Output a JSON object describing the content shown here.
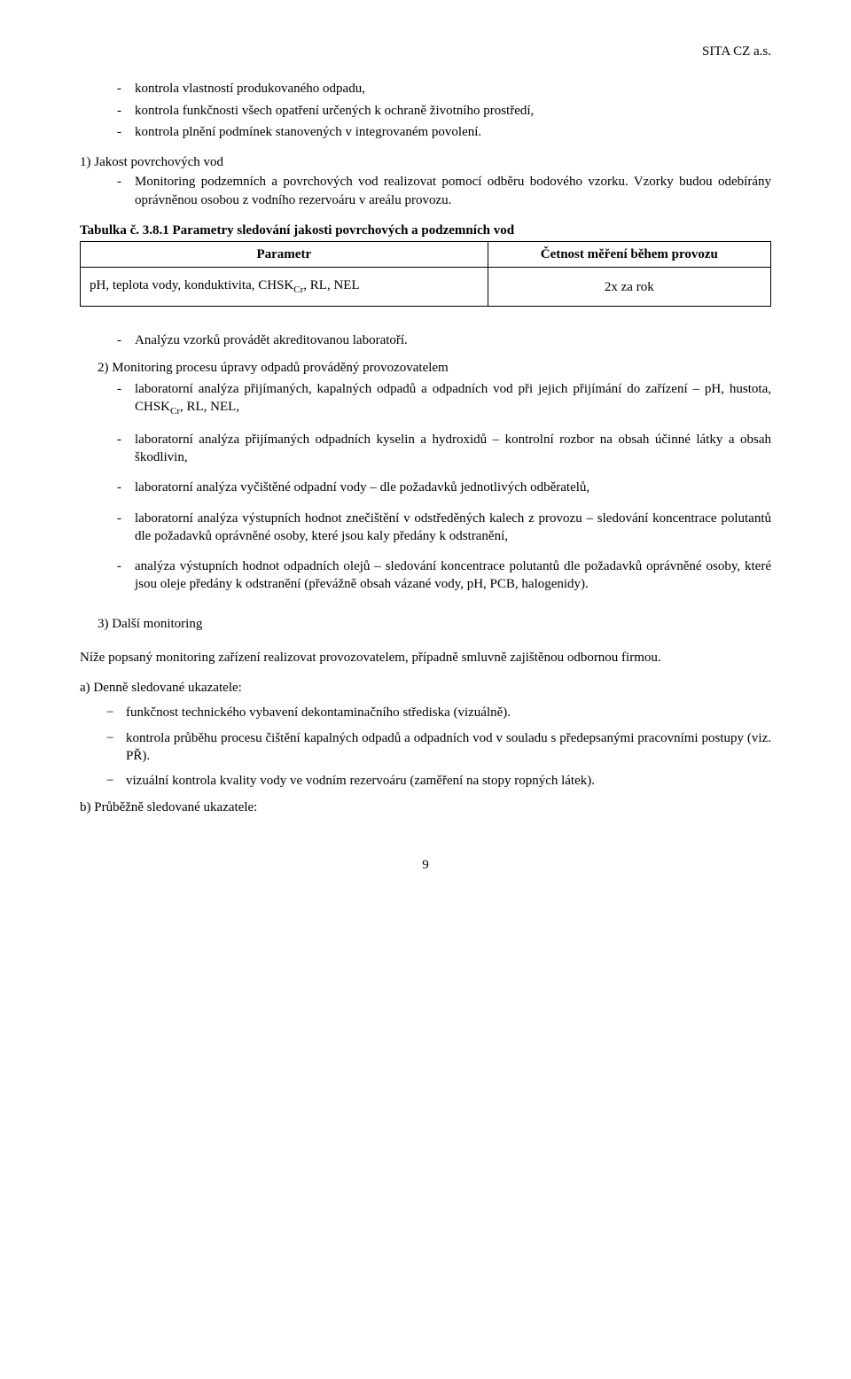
{
  "header": {
    "company": "SITA CZ a.s."
  },
  "intro_bullets": [
    "kontrola vlastností produkovaného odpadu,",
    "kontrola funkčnosti všech opatření určených k ochraně životního prostředí,",
    "kontrola plnění podmínek stanovených v integrovaném povolení."
  ],
  "section1": {
    "heading": "1)  Jakost povrchových vod",
    "body": "Monitoring podzemních a povrchových vod realizovat pomocí odběru bodového vzorku. Vzorky budou odebírány oprávněnou osobou z vodního rezervoáru v areálu provozu."
  },
  "table": {
    "title": "Tabulka č. 3.8.1 Parametry sledování jakosti povrchových  a podzemních vod",
    "col_param": "Parametr",
    "col_freq": "Četnost měření během provozu",
    "row_param_html": "pH, teplota vody, konduktivita, CHSK<sub>Cr</sub>, RL, NEL",
    "row_freq": "2x za rok",
    "col1_width_pct": 59,
    "col2_width_pct": 41
  },
  "section2": {
    "lead_bullet": "Analýzu vzorků provádět akreditovanou laboratoří.",
    "heading": "2)  Monitoring procesu úpravy odpadů prováděný provozovatelem",
    "bullets_html": [
      "laboratorní analýza přijímaných, kapalných odpadů a odpadních vod při jejich přijímání do zařízení – pH, hustota, CHSK<sub>Cr</sub>, RL, NEL,",
      "laboratorní analýza přijímaných odpadních kyselin a hydroxidů – kontrolní rozbor na obsah účinné látky a obsah škodlivin,",
      "laboratorní analýza vyčištěné odpadní vody – dle požadavků jednotlivých odběratelů,",
      "laboratorní analýza výstupních hodnot znečištění v odstředěných kalech z provozu – sledování koncentrace polutantů dle požadavků oprávněné osoby, které jsou kaly předány k odstranění,",
      "analýza výstupních hodnot odpadních olejů – sledování koncentrace polutantů dle požadavků oprávněné osoby, které jsou oleje předány k odstranění (převážně obsah vázané vody, pH, PCB, halogenidy)."
    ]
  },
  "section3": {
    "heading": "3)    Další monitoring",
    "para": "Níže popsaný monitoring zařízení realizovat provozovatelem, případně smluvně zajištěnou odbornou firmou.",
    "sub_a": {
      "title": "a) Denně sledované ukazatele:",
      "items": [
        "funkčnost technického vybavení dekontaminačního střediska (vizuálně).",
        "kontrola průběhu procesu čištění kapalných odpadů a odpadních vod v souladu s předepsanými pracovními postupy (viz. PŘ).",
        "vizuální kontrola kvality vody ve vodním rezervoáru (zaměření na stopy ropných látek)."
      ]
    },
    "sub_b": {
      "title": "b) Průběžně sledované ukazatele:"
    }
  },
  "page_number": "9"
}
